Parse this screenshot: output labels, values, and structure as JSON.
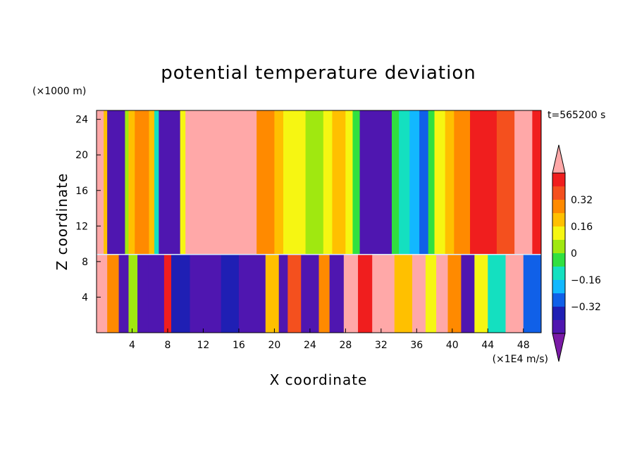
{
  "chart_data": {
    "type": "heatmap",
    "title": "potential temperature deviation",
    "xlabel": "X coordinate",
    "ylabel": "Z coordinate",
    "x_units": "(×1E4 m/s)",
    "y_units": "(×1000 m)",
    "time_label": "t=565200 s",
    "xlim": [
      0,
      50
    ],
    "ylim": [
      0,
      25
    ],
    "x_ticks": [
      4,
      8,
      12,
      16,
      20,
      24,
      28,
      32,
      36,
      40,
      44,
      48
    ],
    "y_ticks": [
      4,
      8,
      12,
      16,
      20,
      24
    ],
    "colorbar": {
      "levels": [
        -0.48,
        -0.4,
        -0.32,
        -0.24,
        -0.16,
        -0.08,
        0,
        0.08,
        0.16,
        0.24,
        0.32,
        0.4,
        0.48
      ],
      "labels": [
        "-0.32",
        "-0.16",
        "0",
        "0.16",
        "0.32"
      ],
      "label_values": [
        -0.32,
        -0.16,
        0,
        0.16,
        0.32
      ],
      "colors": [
        "#7a1aa6",
        "#4f16b0",
        "#1f1fb4",
        "#1060e8",
        "#12b8ff",
        "#14e0c0",
        "#30e040",
        "#a0e810",
        "#f6f612",
        "#ffc000",
        "#ff8a00",
        "#f4501e",
        "#f01e1e",
        "#ffa8a8"
      ],
      "extend": "both"
    },
    "upper_layer_columns": [
      {
        "x": [
          0.0,
          0.8
        ],
        "v": 0.48
      },
      {
        "x": [
          0.8,
          1.2
        ],
        "v": 0.2
      },
      {
        "x": [
          1.2,
          3.2
        ],
        "v": -0.45
      },
      {
        "x": [
          3.2,
          3.6
        ],
        "v": 0.05
      },
      {
        "x": [
          3.6,
          4.3
        ],
        "v": 0.2
      },
      {
        "x": [
          4.3,
          5.9
        ],
        "v": 0.3
      },
      {
        "x": [
          5.9,
          6.5
        ],
        "v": 0.18
      },
      {
        "x": [
          6.5,
          7.0
        ],
        "v": -0.1
      },
      {
        "x": [
          7.0,
          9.4
        ],
        "v": -0.45
      },
      {
        "x": [
          9.4,
          10.0
        ],
        "v": 0.15
      },
      {
        "x": [
          10.0,
          18.0
        ],
        "v": 0.48
      },
      {
        "x": [
          18.0,
          20.0
        ],
        "v": 0.3
      },
      {
        "x": [
          20.0,
          21.0
        ],
        "v": 0.22
      },
      {
        "x": [
          21.0,
          22.0
        ],
        "v": 0.14
      },
      {
        "x": [
          22.0,
          23.5
        ],
        "v": 0.1
      },
      {
        "x": [
          23.5,
          25.5
        ],
        "v": 0.04
      },
      {
        "x": [
          25.5,
          26.5
        ],
        "v": 0.12
      },
      {
        "x": [
          26.5,
          28.0
        ],
        "v": 0.2
      },
      {
        "x": [
          28.0,
          28.8
        ],
        "v": 0.1
      },
      {
        "x": [
          28.8,
          29.6
        ],
        "v": -0.05
      },
      {
        "x": [
          29.6,
          33.2
        ],
        "v": -0.45
      },
      {
        "x": [
          33.2,
          34.0
        ],
        "v": -0.08
      },
      {
        "x": [
          34.0,
          35.2
        ],
        "v": -0.16
      },
      {
        "x": [
          35.2,
          36.3
        ],
        "v": -0.2
      },
      {
        "x": [
          36.3,
          37.3
        ],
        "v": -0.3
      },
      {
        "x": [
          37.3,
          38.0
        ],
        "v": -0.08
      },
      {
        "x": [
          38.0,
          39.2
        ],
        "v": 0.1
      },
      {
        "x": [
          39.2,
          40.2
        ],
        "v": 0.2
      },
      {
        "x": [
          40.2,
          42.0
        ],
        "v": 0.3
      },
      {
        "x": [
          42.0,
          45.0
        ],
        "v": 0.4
      },
      {
        "x": [
          45.0,
          47.0
        ],
        "v": 0.33
      },
      {
        "x": [
          47.0,
          49.0
        ],
        "v": 0.48
      },
      {
        "x": [
          49.0,
          50.0
        ],
        "v": 0.42
      }
    ],
    "lower_layer_columns": [
      {
        "x": [
          0.0,
          1.2
        ],
        "v": 0.48
      },
      {
        "x": [
          1.2,
          2.5
        ],
        "v": 0.3
      },
      {
        "x": [
          2.5,
          3.6
        ],
        "v": -0.45
      },
      {
        "x": [
          3.6,
          4.6
        ],
        "v": 0.05
      },
      {
        "x": [
          4.6,
          5.8
        ],
        "v": -0.45
      },
      {
        "x": [
          5.8,
          7.6
        ],
        "v": -0.45
      },
      {
        "x": [
          7.6,
          8.4
        ],
        "v": 0.4
      },
      {
        "x": [
          8.4,
          10.5
        ],
        "v": -0.4
      },
      {
        "x": [
          10.5,
          14.0
        ],
        "v": -0.45
      },
      {
        "x": [
          14.0,
          16.0
        ],
        "v": -0.35
      },
      {
        "x": [
          16.0,
          19.0
        ],
        "v": -0.45
      },
      {
        "x": [
          19.0,
          20.5
        ],
        "v": 0.2
      },
      {
        "x": [
          20.5,
          21.5
        ],
        "v": -0.45
      },
      {
        "x": [
          21.5,
          23.0
        ],
        "v": 0.32
      },
      {
        "x": [
          23.0,
          25.0
        ],
        "v": -0.45
      },
      {
        "x": [
          25.0,
          26.2
        ],
        "v": 0.3
      },
      {
        "x": [
          26.2,
          27.8
        ],
        "v": -0.45
      },
      {
        "x": [
          27.8,
          29.4
        ],
        "v": 0.48
      },
      {
        "x": [
          29.4,
          31.0
        ],
        "v": 0.4
      },
      {
        "x": [
          31.0,
          33.5
        ],
        "v": 0.48
      },
      {
        "x": [
          33.5,
          35.5
        ],
        "v": 0.2
      },
      {
        "x": [
          35.5,
          37.0
        ],
        "v": 0.48
      },
      {
        "x": [
          37.0,
          38.2
        ],
        "v": 0.12
      },
      {
        "x": [
          38.2,
          39.5
        ],
        "v": 0.48
      },
      {
        "x": [
          39.5,
          41.0
        ],
        "v": 0.3
      },
      {
        "x": [
          41.0,
          42.5
        ],
        "v": -0.45
      },
      {
        "x": [
          42.5,
          44.0
        ],
        "v": 0.1
      },
      {
        "x": [
          44.0,
          46.0
        ],
        "v": -0.16
      },
      {
        "x": [
          46.0,
          48.0
        ],
        "v": 0.48
      },
      {
        "x": [
          48.0,
          50.0
        ],
        "v": -0.3
      }
    ],
    "interface_height": 8.8
  }
}
